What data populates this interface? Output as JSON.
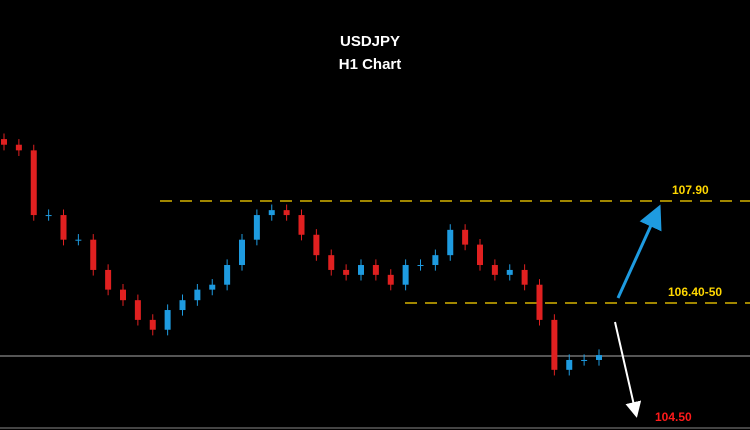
{
  "chart_data": {
    "type": "candlestick",
    "title": "USDJPY",
    "subtitle": "H1 Chart",
    "up_color": "#1e9be0",
    "down_color": "#e02020",
    "levels": [
      {
        "value": 107.9,
        "label": "107.90",
        "color": "#ffd700"
      },
      {
        "value": 106.45,
        "label": "106.40-50",
        "color": "#ffd700"
      }
    ],
    "target": {
      "value": 104.5,
      "label": "104.50",
      "color": "#ff1a1a"
    },
    "open": [
      108.78,
      108.7,
      108.62,
      107.7,
      107.7,
      107.35,
      107.35,
      106.92,
      106.64,
      106.49,
      106.21,
      106.07,
      106.35,
      106.49,
      106.64,
      106.71,
      106.99,
      107.35,
      107.7,
      107.77,
      107.7,
      107.42,
      107.13,
      106.92,
      106.85,
      106.99,
      106.85,
      106.71,
      106.99,
      106.99,
      107.13,
      107.49,
      107.28,
      106.99,
      106.85,
      106.92,
      106.71,
      106.21,
      105.5,
      105.64,
      105.64
    ],
    "high": [
      108.86,
      108.78,
      108.7,
      107.78,
      107.78,
      107.43,
      107.43,
      107.0,
      106.72,
      106.57,
      106.29,
      106.43,
      106.57,
      106.72,
      106.79,
      107.07,
      107.43,
      107.78,
      107.85,
      107.85,
      107.78,
      107.5,
      107.21,
      107.0,
      107.07,
      107.07,
      106.93,
      107.07,
      107.07,
      107.21,
      107.57,
      107.57,
      107.36,
      107.07,
      107.0,
      107.0,
      106.79,
      106.29,
      105.72,
      105.72,
      105.79
    ],
    "low": [
      108.62,
      108.54,
      107.62,
      107.62,
      107.27,
      107.27,
      106.84,
      106.56,
      106.41,
      106.13,
      105.99,
      105.99,
      106.27,
      106.41,
      106.56,
      106.63,
      106.91,
      107.27,
      107.62,
      107.62,
      107.34,
      107.05,
      106.84,
      106.77,
      106.77,
      106.77,
      106.63,
      106.63,
      106.91,
      106.91,
      107.05,
      107.2,
      106.91,
      106.77,
      106.77,
      106.63,
      106.13,
      105.42,
      105.42,
      105.56,
      105.56
    ],
    "close": [
      108.7,
      108.62,
      107.7,
      107.7,
      107.35,
      107.35,
      106.92,
      106.64,
      106.49,
      106.21,
      106.07,
      106.35,
      106.49,
      106.64,
      106.71,
      106.99,
      107.35,
      107.7,
      107.77,
      107.7,
      107.42,
      107.13,
      106.92,
      106.85,
      106.99,
      106.85,
      106.71,
      106.99,
      106.99,
      107.13,
      107.49,
      107.28,
      106.99,
      106.85,
      106.92,
      106.71,
      106.21,
      105.5,
      105.64,
      105.64,
      105.71
    ]
  }
}
